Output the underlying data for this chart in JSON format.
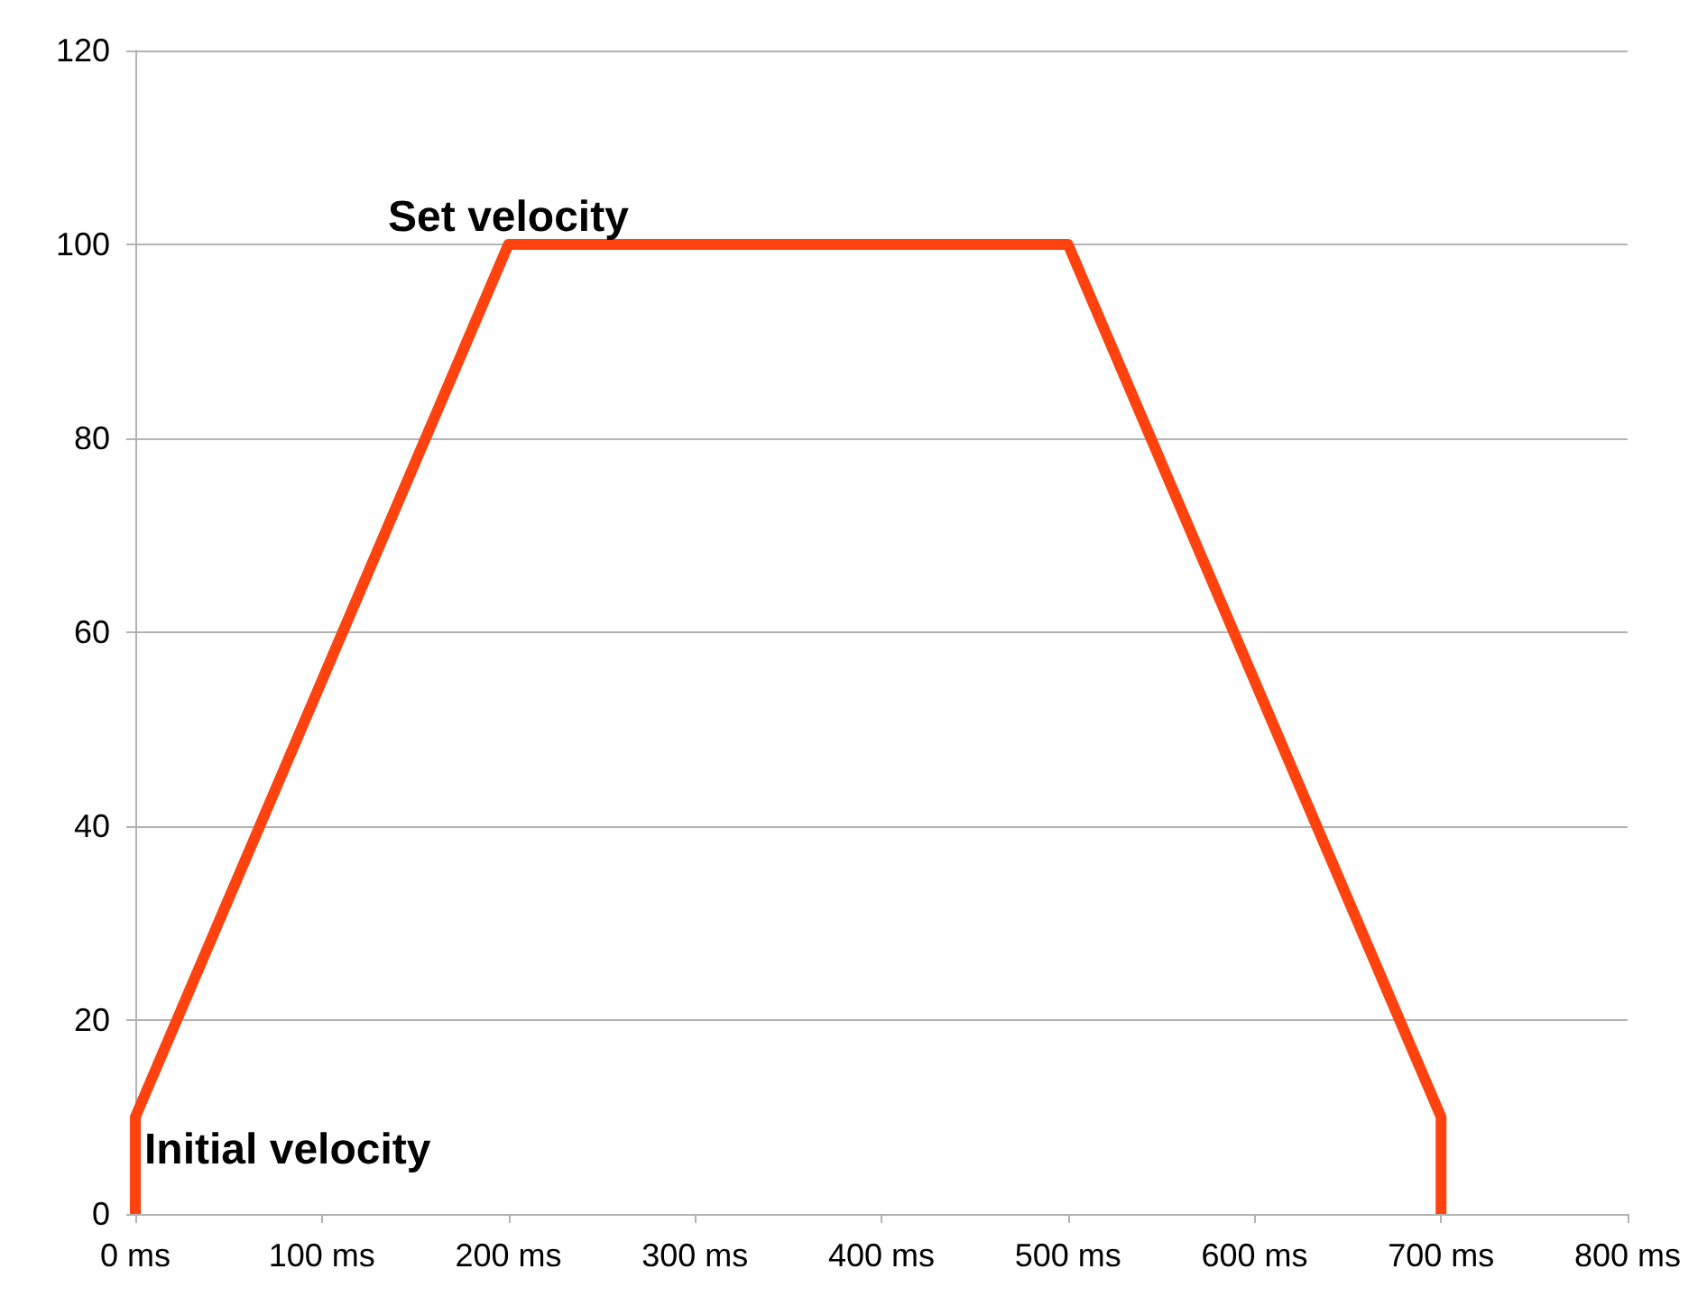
{
  "chart_data": {
    "type": "line",
    "x": [
      0,
      0,
      200,
      500,
      700,
      700
    ],
    "series": [
      {
        "color": "#ff420e",
        "values": [
          0,
          10,
          100,
          100,
          10,
          0
        ]
      }
    ],
    "xlim": [
      0,
      800
    ],
    "xticks": [
      {
        "value": 0,
        "label": "0 ms"
      },
      {
        "value": 100,
        "label": "100 ms"
      },
      {
        "value": 200,
        "label": "200 ms"
      },
      {
        "value": 300,
        "label": "300 ms"
      },
      {
        "value": 400,
        "label": "400 ms"
      },
      {
        "value": 500,
        "label": "500 ms"
      },
      {
        "value": 600,
        "label": "600 ms"
      },
      {
        "value": 700,
        "label": "700 ms"
      },
      {
        "value": 800,
        "label": "800 ms"
      }
    ],
    "ylim": [
      0,
      120
    ],
    "yticks": [
      0,
      20,
      40,
      60,
      80,
      100,
      120
    ],
    "grid": "y",
    "marker": "none",
    "line_style": "solid",
    "annotations": [
      {
        "text": "Set velocity",
        "x": 200,
        "y": 100
      },
      {
        "text": "Initial velocity",
        "x": 0,
        "y": 10
      }
    ]
  }
}
